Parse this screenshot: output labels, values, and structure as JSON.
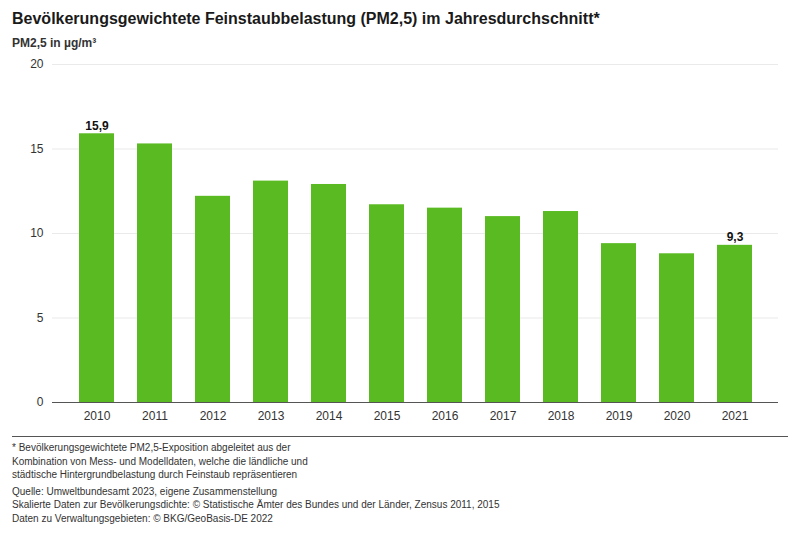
{
  "chart_data": {
    "type": "bar",
    "title": "Bevölkerungsgewichtete Feinstaubbelastung (PM2,5) im Jahresdurchschnitt*",
    "ylabel": "PM2,5 in µg/m³",
    "categories": [
      "2010",
      "2011",
      "2012",
      "2013",
      "2014",
      "2015",
      "2016",
      "2017",
      "2018",
      "2019",
      "2020",
      "2021"
    ],
    "values": [
      15.9,
      15.3,
      12.2,
      13.1,
      12.9,
      11.7,
      11.5,
      11.0,
      11.3,
      9.4,
      8.8,
      9.3
    ],
    "color": "#5aba22",
    "ylim": [
      0,
      20
    ],
    "yticks": [
      0,
      5,
      10,
      15,
      20
    ],
    "grid": true,
    "annotations": [
      {
        "category": "2010",
        "value": 15.9,
        "label": "15,9"
      },
      {
        "category": "2021",
        "value": 9.3,
        "label": "9,3"
      }
    ],
    "footnotes": [
      "* Bevölkerungsgewichtete PM2,5-Exposition abgeleitet aus der\nKombination von Mess- und Modelldaten, welche die ländliche und\nstädtische Hintergrundbelastung durch Feinstaub repräsentieren",
      "Quelle: Umweltbundesamt 2023, eigene Zusammenstellung\nSkalierte Daten zur Bevölkerungsdichte: © Statistische Ämter des Bundes und der Länder, Zensus 2011, 2015\nDaten zu Verwaltungsgebieten: © BKG/GeoBasis-DE 2022"
    ]
  }
}
